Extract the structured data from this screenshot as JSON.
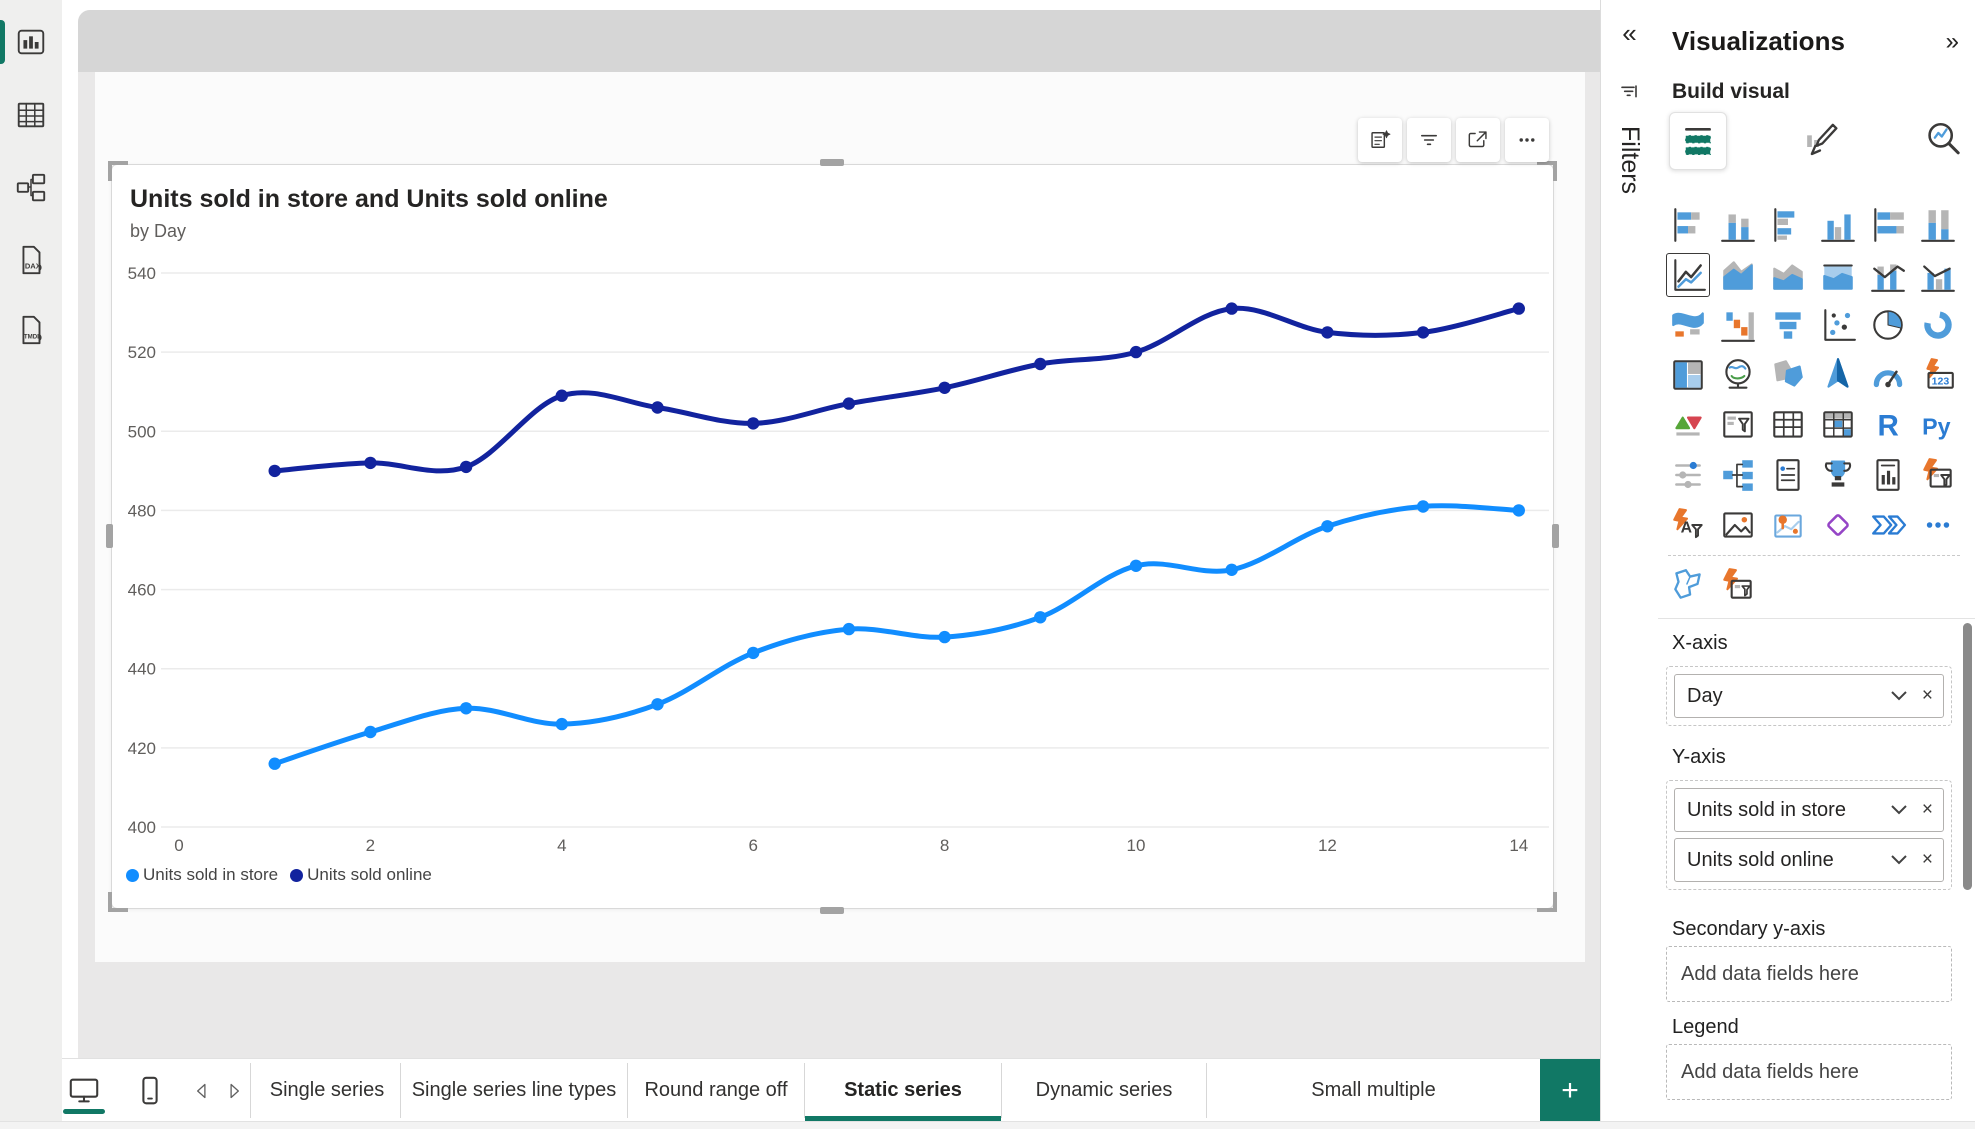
{
  "colors": {
    "accent_green": "#117865",
    "series_store": "#118DFF",
    "series_online": "#12239E",
    "canvas_band": "#d6d6d6",
    "canvas_surround": "#e9e8e8"
  },
  "left_nav": {
    "items": [
      {
        "icon": "report-view-icon",
        "active": true
      },
      {
        "icon": "table-view-icon",
        "active": false
      },
      {
        "icon": "model-view-icon",
        "active": false
      },
      {
        "icon": "dax-view-icon",
        "active": false,
        "label": "DAX"
      },
      {
        "icon": "tmdl-view-icon",
        "active": false,
        "label": "TMDL"
      }
    ]
  },
  "visual": {
    "toolbar": [
      {
        "icon": "copilot-icon"
      },
      {
        "icon": "filter-icon"
      },
      {
        "icon": "focus-mode-icon"
      },
      {
        "icon": "more-options-icon"
      }
    ]
  },
  "chart_data": {
    "type": "line",
    "title": "Units sold in store and Units sold online",
    "subtitle": "by Day",
    "xlabel": "Day",
    "x": [
      1,
      2,
      3,
      4,
      5,
      6,
      7,
      8,
      9,
      10,
      11,
      12,
      13,
      14
    ],
    "series": [
      {
        "name": "Units sold in store",
        "color": "#118DFF",
        "values": [
          416,
          424,
          430,
          426,
          431,
          444,
          450,
          448,
          453,
          466,
          465,
          476,
          481,
          480
        ]
      },
      {
        "name": "Units sold online",
        "color": "#12239E",
        "values": [
          490,
          492,
          491,
          509,
          506,
          502,
          507,
          511,
          517,
          520,
          531,
          525,
          525,
          531
        ]
      }
    ],
    "ylim": [
      400,
      540
    ],
    "ytick_step": 20,
    "xticks": [
      0,
      2,
      4,
      6,
      8,
      10,
      12,
      14
    ],
    "xlim": [
      0,
      14
    ],
    "grid": true,
    "smooth": true,
    "legend_position": "bottom-left"
  },
  "filters_pane": {
    "collapse_glyph": "«",
    "label": "Filters",
    "icon": "filter-pane-icon"
  },
  "viz_pane": {
    "title": "Visualizations",
    "collapse_glyph": "»",
    "build_label": "Build visual",
    "tabs": [
      {
        "icon": "build-visual-icon",
        "selected": true
      },
      {
        "icon": "format-visual-icon",
        "selected": false
      },
      {
        "icon": "analytics-icon",
        "selected": false
      }
    ],
    "selected_visual": "line",
    "gallery": [
      "stacked-bar",
      "stacked-column",
      "clustered-bar",
      "clustered-column",
      "stacked-bar-100",
      "stacked-column-100",
      "line",
      "area",
      "stacked-area",
      "stacked-area-100",
      "line-stacked-column",
      "line-clustered-column",
      "ribbon",
      "waterfall",
      "funnel",
      "scatter",
      "pie",
      "donut",
      "treemap",
      "map",
      "filled-map",
      "azure-map",
      "gauge",
      "card",
      "kpi",
      "slicer-new",
      "table",
      "matrix",
      "r-script",
      "python",
      "slicer",
      "decomposition-tree",
      "smart-narrative",
      "metrics",
      "paginated-report",
      "ai-slicer",
      "text-filter",
      "image",
      "arcgis-map",
      "power-apps",
      "power-automate",
      "more-visuals"
    ],
    "gallery_extra": [
      "shape-map",
      "ai-filter"
    ],
    "wells": [
      {
        "label": "X-axis",
        "pills": [
          "Day"
        ]
      },
      {
        "label": "Y-axis",
        "pills": [
          "Units sold in store",
          "Units sold online"
        ]
      },
      {
        "label": "Secondary y-axis",
        "placeholder": "Add data fields here"
      },
      {
        "label": "Legend",
        "placeholder": "Add data fields here"
      }
    ]
  },
  "pages_bar": {
    "view_icons": [
      "desktop-view-icon",
      "mobile-view-icon"
    ],
    "nav_icons": [
      "page-back-icon",
      "page-forward-icon"
    ],
    "tabs": [
      {
        "label": "Single series",
        "active": false
      },
      {
        "label": "Single series line types",
        "active": false
      },
      {
        "label": "Round range off",
        "active": false
      },
      {
        "label": "Static series",
        "active": true
      },
      {
        "label": "Dynamic series",
        "active": false
      },
      {
        "label": "Small multiple",
        "active": false
      }
    ],
    "add_page_glyph": "+"
  }
}
